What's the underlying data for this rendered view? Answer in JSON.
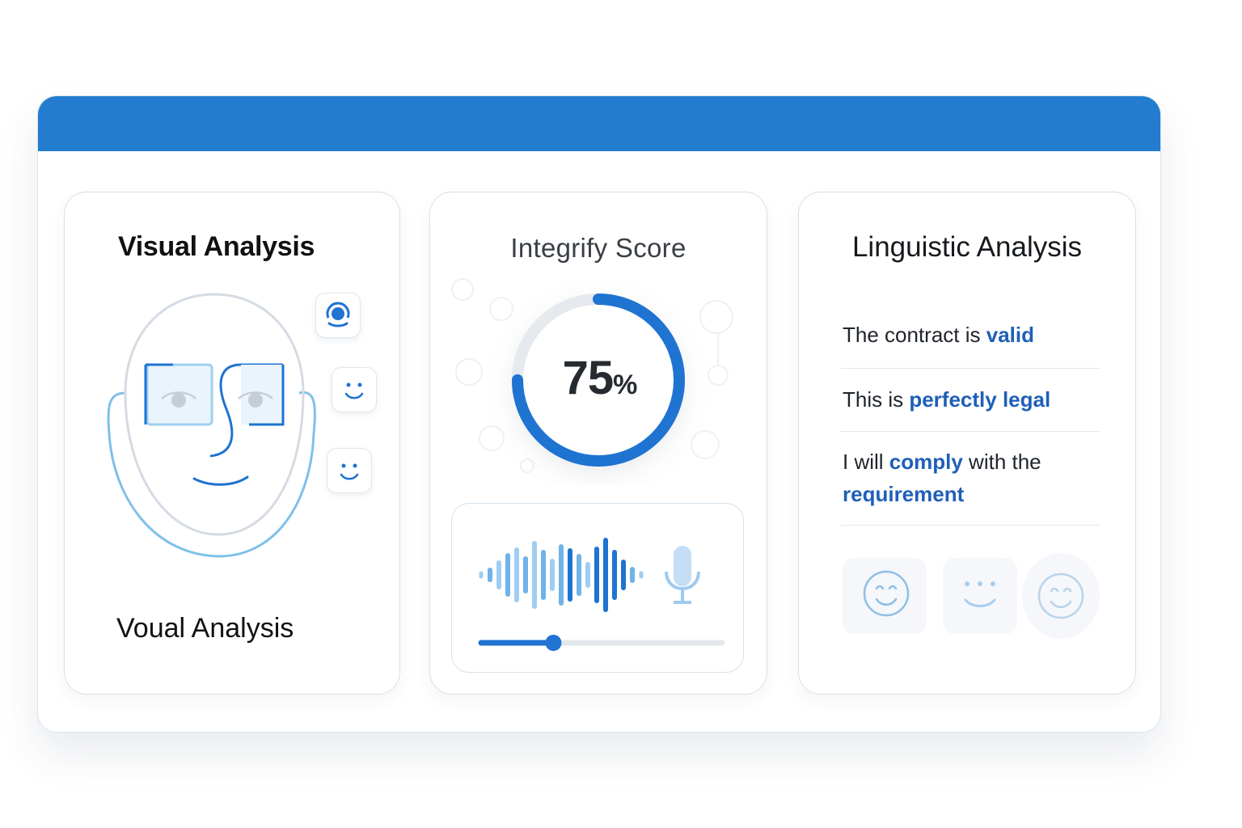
{
  "visual": {
    "title": "Visual Analysis",
    "caption": "Voual Analysis",
    "icons": [
      "face-scan-icon",
      "smiley-face-icon",
      "smiley-face-icon",
      "focus-target-icon"
    ]
  },
  "score": {
    "title": "Integrify Score",
    "value": "75",
    "unit": "%",
    "fraction": 0.75,
    "voice": {
      "icons": [
        "waveform-icon",
        "microphone-icon"
      ],
      "progress": 0.3
    }
  },
  "linguistic": {
    "title": "Linguistic Analysis",
    "phrases": [
      {
        "before": "The contract is ",
        "highlight": "valid",
        "after": ""
      },
      {
        "before": "This is ",
        "highlight": "perfectly legal",
        "after": ""
      },
      {
        "before": "I will ",
        "highlight": "comply",
        "after": " with the ",
        "highlight2": "requirement"
      }
    ],
    "icons": [
      "smiley-face-icon",
      "smiley-face-icon",
      "smiley-face-icon"
    ]
  },
  "colors": {
    "titlebar": "#237ccf",
    "accent": "#1f73d1",
    "highlight": "#1f5fb8",
    "light_blue": "#7fc0ea"
  }
}
